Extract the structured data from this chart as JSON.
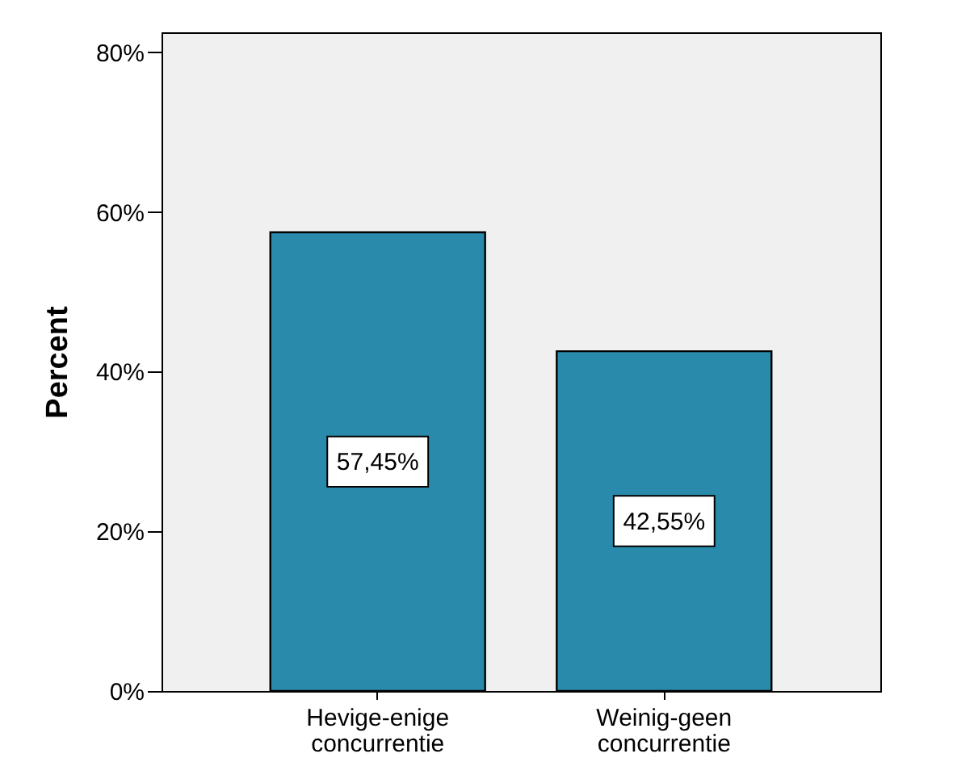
{
  "chart_data": {
    "type": "bar",
    "ylabel": "Percent",
    "categories": [
      "Hevige-enige concurrentie",
      "Weinig-geen concurrentie"
    ],
    "values": [
      57.45,
      42.55
    ],
    "color": "#2a8aab",
    "value_labels": [
      "57,45%",
      "42,55%"
    ],
    "ylim": [
      0,
      82.5
    ],
    "yticks": [
      {
        "value": 0,
        "label": "0%"
      },
      {
        "value": 20,
        "label": "20%"
      },
      {
        "value": 40,
        "label": "40%"
      },
      {
        "value": 60,
        "label": "60%"
      },
      {
        "value": 80,
        "label": "80%"
      }
    ],
    "grid": false
  }
}
